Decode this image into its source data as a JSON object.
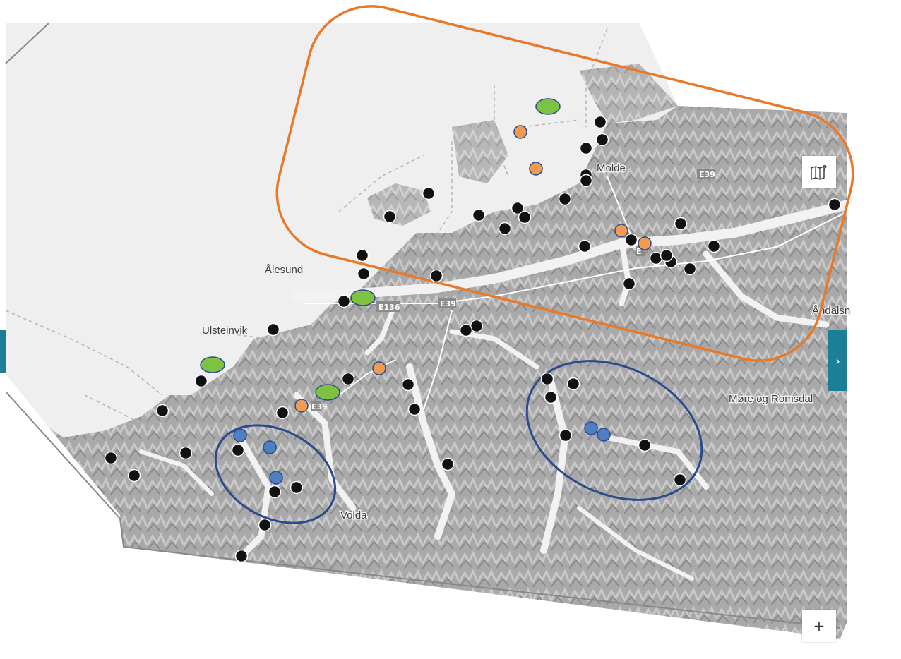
{
  "map": {
    "region_label": "Møre og Romsdal",
    "place_labels": [
      {
        "id": "alesund",
        "text": "Ålesund"
      },
      {
        "id": "molde",
        "text": "Molde"
      },
      {
        "id": "ulsteinvik",
        "text": "Ulsteinvik"
      },
      {
        "id": "volda",
        "text": "Volda"
      },
      {
        "id": "andalsnes",
        "text": "Åndalsn"
      }
    ],
    "road_shields": [
      "E136",
      "E39",
      "E39",
      "E39",
      "E"
    ],
    "marker_colors": {
      "black": "#111111",
      "orange": "#f29a4e",
      "green": "#7dc241",
      "blue": "#4f7fc2",
      "highlight_orange": "#e8792b",
      "highlight_blue": "#2a4a8c",
      "accent_teal": "#1b7f97"
    }
  },
  "controls": {
    "help_icon": "map-question-icon",
    "zoom_in_label": "+",
    "panel_toggle_label": "›"
  }
}
